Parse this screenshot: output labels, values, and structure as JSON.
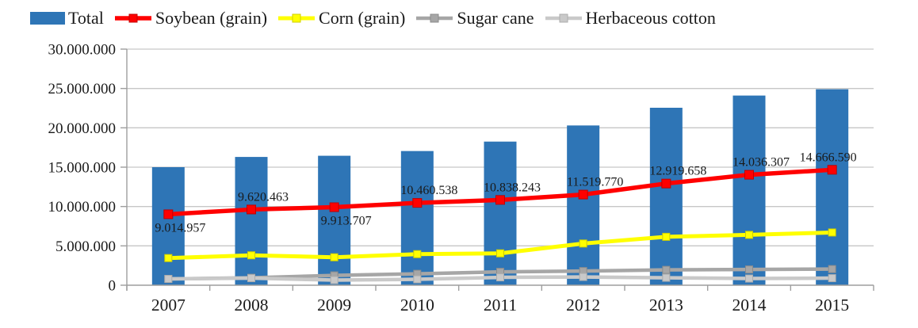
{
  "chart_data": {
    "type": "bar",
    "subtype": "bar-line-combo",
    "title": "",
    "xlabel": "",
    "ylabel": "",
    "categories": [
      "2007",
      "2008",
      "2009",
      "2010",
      "2011",
      "2012",
      "2013",
      "2014",
      "2015"
    ],
    "series": [
      {
        "name": "Total",
        "kind": "bar",
        "color": "#2E75B6",
        "values": [
          15000000,
          16300000,
          16450000,
          17050000,
          18250000,
          20300000,
          22550000,
          24100000,
          24900000
        ]
      },
      {
        "name": "Soybean (grain)",
        "kind": "line",
        "color": "#FF0000",
        "marker_stroke": "#C00000",
        "values": [
          9014957,
          9620463,
          9913707,
          10460538,
          10838243,
          11519770,
          12919658,
          14036307,
          14666590
        ],
        "data_labels": [
          "9.014.957",
          "9.620.463",
          "9.913.707",
          "10.460.538",
          "10.838.243",
          "11.519.770",
          "12.919.658",
          "14.036.307",
          "14.666.590"
        ],
        "label_side": [
          "below",
          "above",
          "below",
          "above",
          "above",
          "above",
          "above",
          "above",
          "above"
        ]
      },
      {
        "name": "Corn (grain)",
        "kind": "line",
        "color": "#FFFF00",
        "marker_stroke": "#CFCF00",
        "values": [
          3450000,
          3800000,
          3550000,
          3950000,
          4050000,
          5300000,
          6150000,
          6400000,
          6700000
        ]
      },
      {
        "name": "Sugar cane",
        "kind": "line",
        "color": "#A6A6A6",
        "marker_stroke": "#8C8C8C",
        "values": [
          800000,
          950000,
          1250000,
          1450000,
          1700000,
          1800000,
          1950000,
          2000000,
          2050000
        ]
      },
      {
        "name": "Herbaceous cotton",
        "kind": "line",
        "color": "#C9C9C9",
        "marker_stroke": "#ADADAD",
        "values": [
          800000,
          900000,
          650000,
          750000,
          1000000,
          1050000,
          950000,
          850000,
          900000
        ]
      }
    ],
    "ylim": [
      0,
      30000000
    ],
    "y_tick_step": 5000000,
    "y_tick_labels": [
      "0",
      "5.000.000",
      "10.000.000",
      "15.000.000",
      "20.000.000",
      "25.000.000",
      "30.000.000"
    ],
    "grid": "horizontal",
    "legend_position": "top",
    "colors": {
      "gridline": "#C6C6C6",
      "axis": "#9E9E9E",
      "label_text": "#1a1a1a"
    }
  }
}
